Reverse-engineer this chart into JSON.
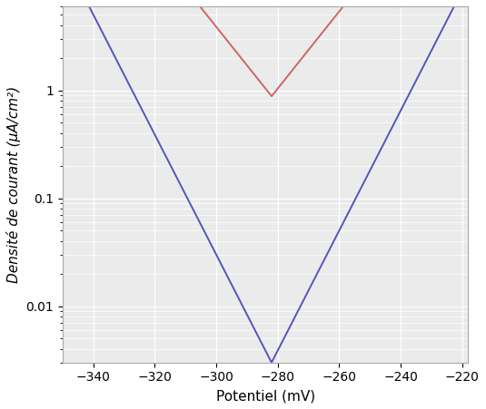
{
  "title": "",
  "xlabel": "Potentiel (mV)",
  "ylabel": "Densité de courant (μA/cm²)",
  "xlim": [
    -350,
    -218
  ],
  "ylim": [
    0.003,
    6
  ],
  "xticks": [
    -340,
    -320,
    -300,
    -280,
    -260,
    -240,
    -220
  ],
  "background_color": "#ebebeb",
  "grid_color": "#ffffff",
  "blue_curve": {
    "color": "#5555bb",
    "ecorr": -282,
    "icorr": 0.003,
    "ba_mv": 18.0,
    "bc_mv": 18.0
  },
  "red_curve": {
    "color": "#cc6666",
    "ecorr": -282,
    "icorr": 0.88,
    "ba_mv": 28.0,
    "bc_mv": 28.0
  },
  "ylabel_fontsize": 11,
  "xlabel_fontsize": 11,
  "tick_fontsize": 10
}
